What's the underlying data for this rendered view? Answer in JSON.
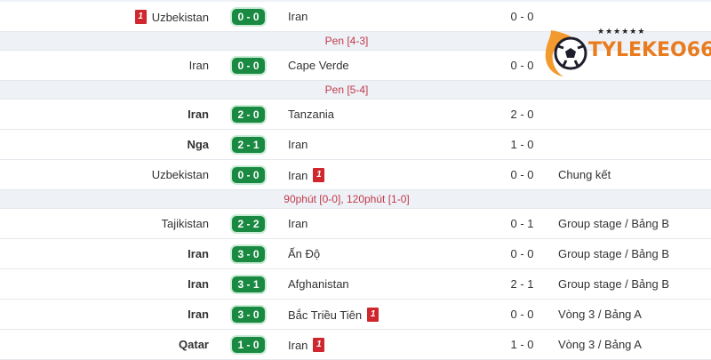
{
  "logo": {
    "text": "TYLEKEO66",
    "stars": "★★★★★★"
  },
  "colors": {
    "score_bg": "#1a8a43",
    "card": "#d0272f",
    "note": "#c0394b",
    "logo": "#e97b1f"
  },
  "rows": [
    {
      "type": "match",
      "home": "Uzbekistan",
      "home_bold": false,
      "home_card": "1",
      "score": "0 - 0",
      "away": "Iran",
      "away_bold": false,
      "away_card": "",
      "ht": "0 - 0",
      "round": ""
    },
    {
      "type": "info",
      "text": "Pen [4-3]"
    },
    {
      "type": "match",
      "home": "Iran",
      "home_bold": false,
      "home_card": "",
      "score": "0 - 0",
      "away": "Cape Verde",
      "away_card": "",
      "ht": "0 - 0",
      "round": ""
    },
    {
      "type": "info",
      "text": "Pen [5-4]"
    },
    {
      "type": "match",
      "home": "Iran",
      "home_bold": true,
      "home_card": "",
      "score": "2 - 0",
      "away": "Tanzania",
      "away_card": "",
      "ht": "2 - 0",
      "round": ""
    },
    {
      "type": "match",
      "home": "Nga",
      "home_bold": true,
      "home_card": "",
      "score": "2 - 1",
      "away": "Iran",
      "away_card": "",
      "ht": "1 - 0",
      "round": ""
    },
    {
      "type": "match",
      "home": "Uzbekistan",
      "home_bold": false,
      "home_card": "",
      "score": "0 - 0",
      "away": "Iran",
      "away_card": "1",
      "ht": "0 - 0",
      "round": "Chung kết"
    },
    {
      "type": "info",
      "text": "90phút [0-0], 120phút [1-0]"
    },
    {
      "type": "match",
      "home": "Tajikistan",
      "home_bold": false,
      "home_card": "",
      "score": "2 - 2",
      "away": "Iran",
      "away_card": "",
      "ht": "0 - 1",
      "round": "Group stage / Bảng B"
    },
    {
      "type": "match",
      "home": "Iran",
      "home_bold": true,
      "home_card": "",
      "score": "3 - 0",
      "away": "Ấn Độ",
      "away_card": "",
      "ht": "0 - 0",
      "round": "Group stage / Bảng B"
    },
    {
      "type": "match",
      "home": "Iran",
      "home_bold": true,
      "home_card": "",
      "score": "3 - 1",
      "away": "Afghanistan",
      "away_card": "",
      "ht": "2 - 1",
      "round": "Group stage / Bảng B"
    },
    {
      "type": "match",
      "home": "Iran",
      "home_bold": true,
      "home_card": "",
      "score": "3 - 0",
      "away": "Bắc Triều Tiên",
      "away_card": "1",
      "ht": "0 - 0",
      "round": "Vòng 3 / Bảng A"
    },
    {
      "type": "match",
      "home": "Qatar",
      "home_bold": true,
      "home_card": "",
      "score": "1 - 0",
      "away": "Iran",
      "away_card": "1",
      "ht": "1 - 0",
      "round": "Vòng 3 / Bảng A"
    }
  ]
}
